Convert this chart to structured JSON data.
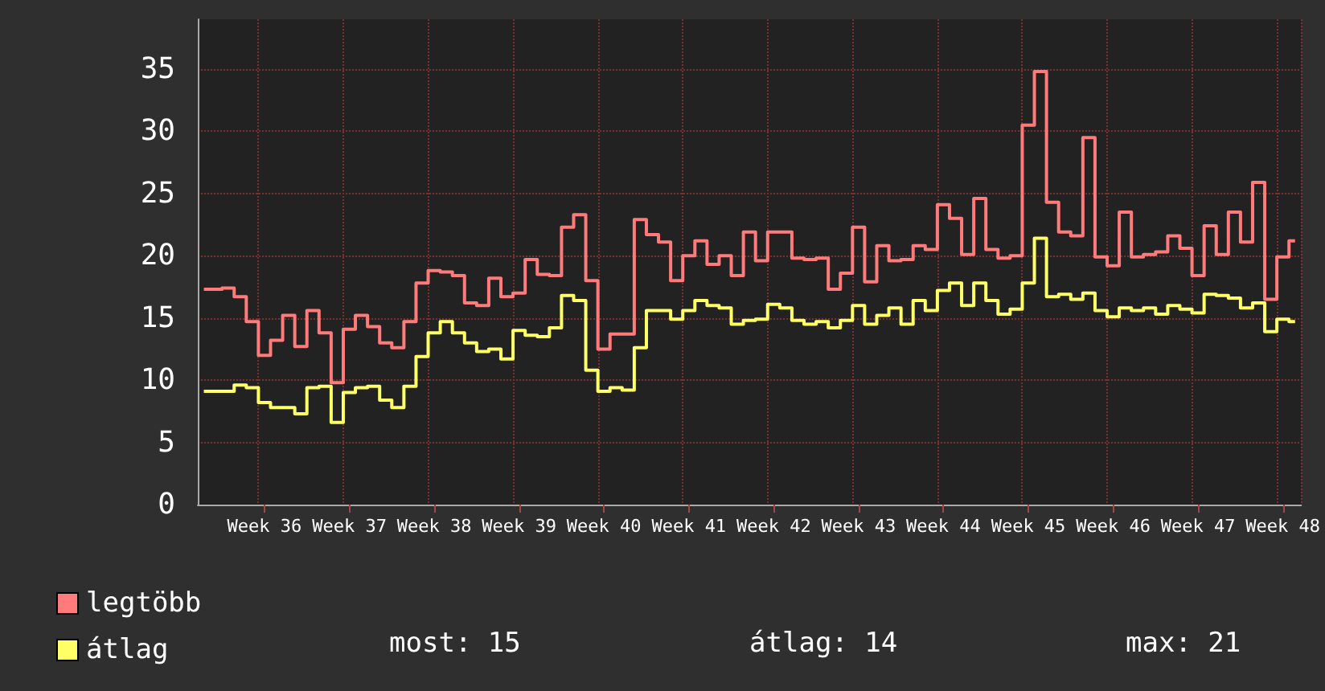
{
  "chart_data": {
    "type": "step",
    "categories": [
      null,
      null,
      null,
      null,
      null,
      "Week 36",
      null,
      null,
      null,
      null,
      null,
      null,
      "Week 37",
      null,
      null,
      null,
      null,
      null,
      null,
      "Week 38",
      null,
      null,
      null,
      null,
      null,
      null,
      "Week 39",
      null,
      null,
      null,
      null,
      null,
      null,
      "Week 40",
      null,
      null,
      null,
      null,
      null,
      null,
      "Week 41",
      null,
      null,
      null,
      null,
      null,
      null,
      "Week 42",
      null,
      null,
      null,
      null,
      null,
      null,
      "Week 43",
      null,
      null,
      null,
      null,
      null,
      null,
      "Week 44",
      null,
      null,
      null,
      null,
      null,
      null,
      "Week 45",
      null,
      null,
      null,
      null,
      null,
      null,
      "Week 46",
      null,
      null,
      null,
      null,
      null,
      null,
      "Week 47",
      null,
      null,
      null,
      null,
      null,
      null,
      "Week 48",
      null
    ],
    "series": [
      {
        "name": "legtöbb",
        "color": "#ff7b7b",
        "values": [
          17.3,
          17.3,
          17.4,
          16.7,
          14.7,
          12.0,
          13.2,
          15.2,
          12.7,
          15.6,
          13.8,
          9.8,
          14.1,
          15.2,
          14.3,
          13.0,
          12.6,
          14.7,
          17.8,
          18.8,
          18.7,
          18.4,
          16.2,
          16.0,
          18.2,
          16.7,
          17.0,
          19.7,
          18.5,
          18.4,
          22.3,
          23.3,
          18.0,
          12.5,
          13.7,
          13.7,
          22.9,
          21.7,
          21.1,
          18.0,
          20.0,
          21.2,
          19.3,
          20.0,
          18.4,
          21.9,
          19.6,
          21.9,
          21.9,
          19.8,
          19.7,
          19.8,
          17.3,
          18.6,
          22.3,
          17.9,
          20.8,
          19.6,
          19.7,
          20.8,
          20.5,
          24.1,
          23.0,
          20.1,
          24.6,
          20.5,
          19.8,
          20.0,
          30.5,
          34.8,
          24.3,
          21.9,
          21.6,
          29.5,
          19.9,
          19.2,
          23.5,
          19.9,
          20.1,
          20.3,
          21.6,
          20.6,
          18.4,
          22.4,
          20.1,
          23.5,
          21.1,
          25.9,
          16.5,
          19.9,
          21.2
        ]
      },
      {
        "name": "átlag",
        "color": "#ffff66",
        "values": [
          9.1,
          9.1,
          9.1,
          9.6,
          9.4,
          8.2,
          7.8,
          7.8,
          7.3,
          9.4,
          9.5,
          6.6,
          9.0,
          9.4,
          9.5,
          8.4,
          7.8,
          9.5,
          11.9,
          13.8,
          14.7,
          13.8,
          13.0,
          12.3,
          12.5,
          11.7,
          14.0,
          13.6,
          13.5,
          14.2,
          16.8,
          16.4,
          10.8,
          9.1,
          9.4,
          9.2,
          12.6,
          15.6,
          15.6,
          14.9,
          15.6,
          16.4,
          16.0,
          15.8,
          14.5,
          14.8,
          14.9,
          16.1,
          15.8,
          14.8,
          14.5,
          14.7,
          14.2,
          14.8,
          16.0,
          14.5,
          15.2,
          15.8,
          14.5,
          16.4,
          15.6,
          17.2,
          17.8,
          16.0,
          17.8,
          16.4,
          15.3,
          15.7,
          17.8,
          21.4,
          16.7,
          16.9,
          16.5,
          17.0,
          15.6,
          15.1,
          15.8,
          15.6,
          15.8,
          15.3,
          16.0,
          15.7,
          15.4,
          16.9,
          16.8,
          16.6,
          15.8,
          16.2,
          13.9,
          14.9,
          14.7
        ]
      }
    ],
    "ylim": [
      0,
      39
    ],
    "yticks": [
      0,
      5,
      10,
      15,
      20,
      25,
      30,
      35
    ],
    "grid": true,
    "legend": "bottom left",
    "annotations": [
      "most: 15",
      "átlag: 14",
      "max: 21"
    ]
  }
}
